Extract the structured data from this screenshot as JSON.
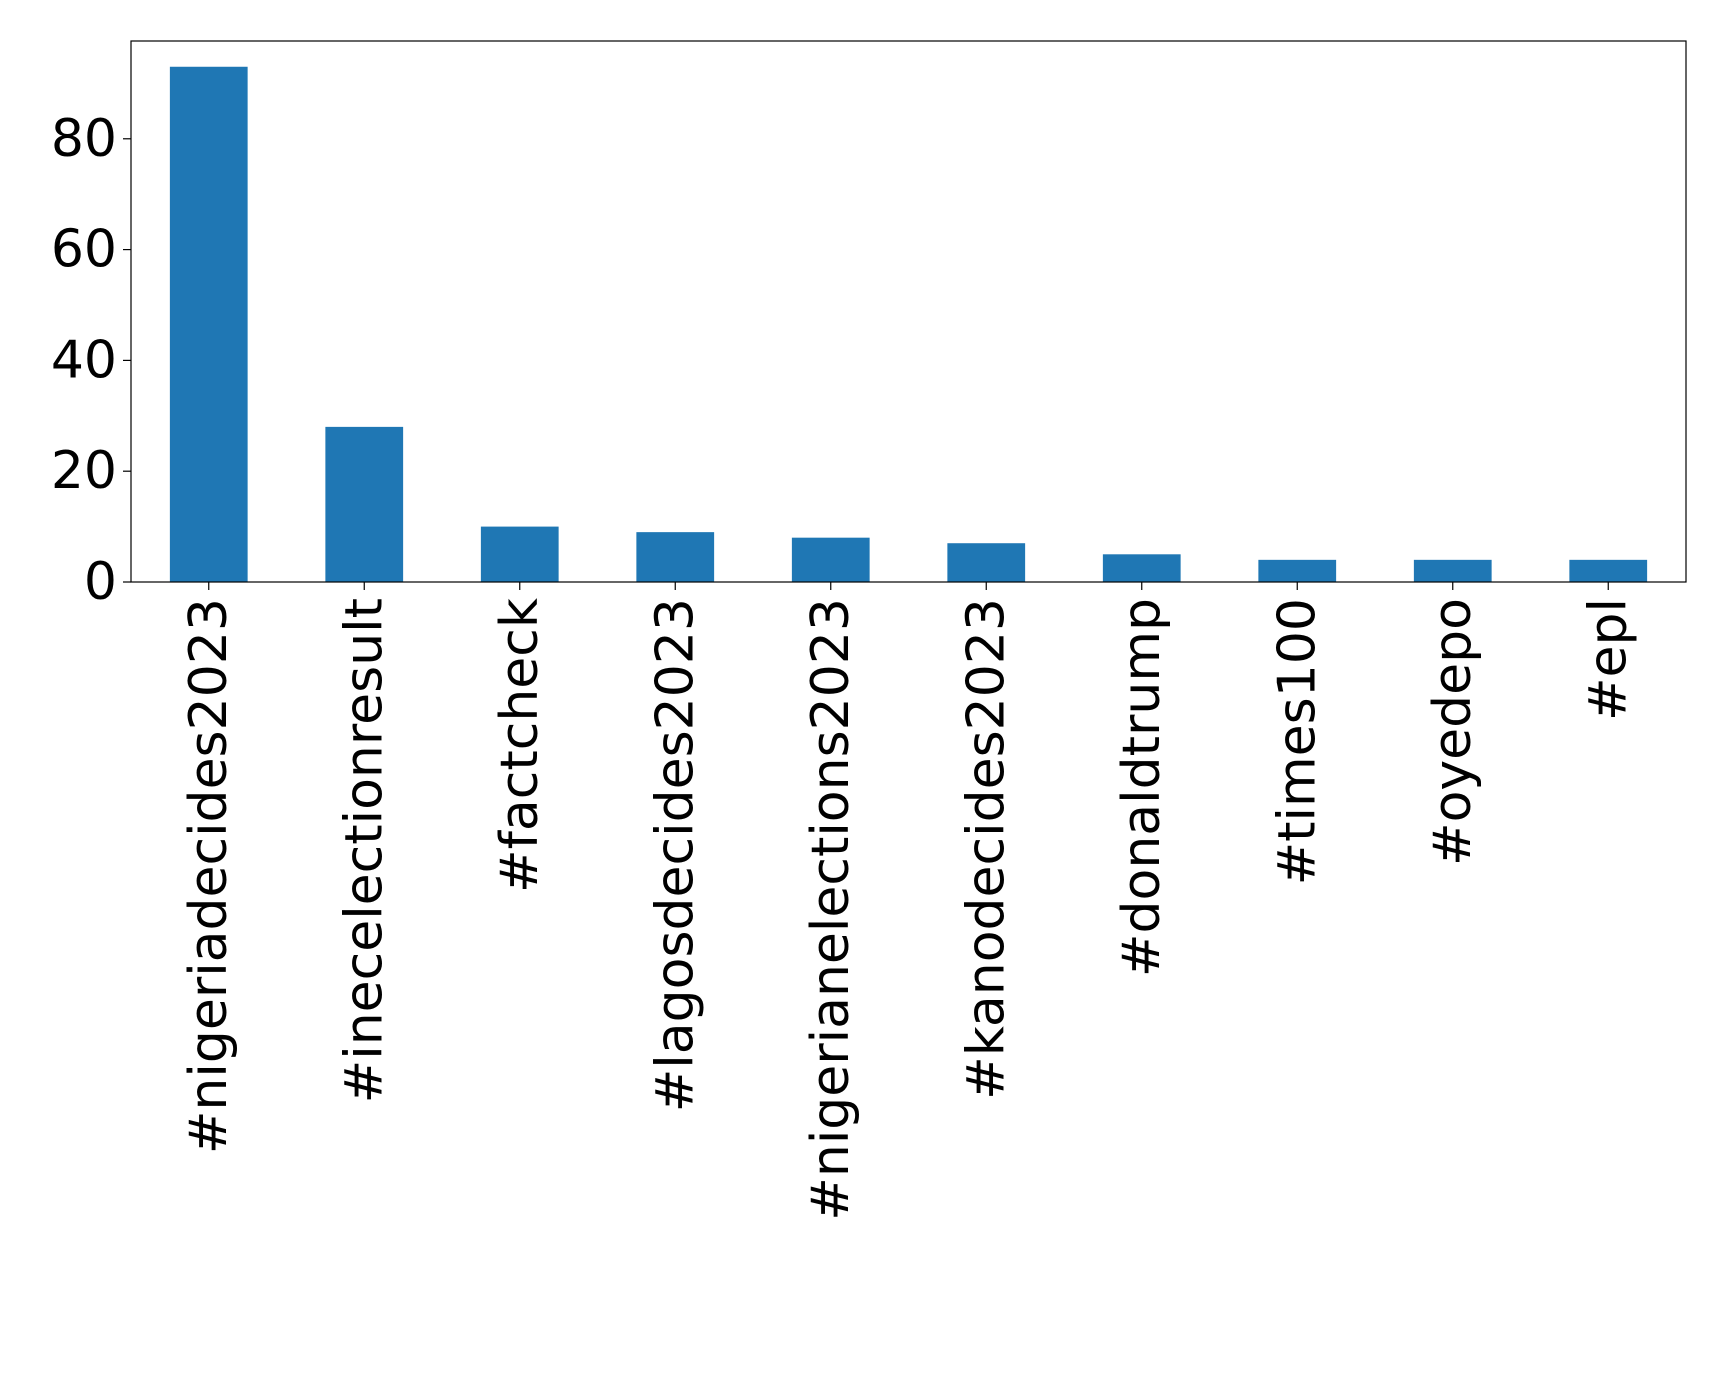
{
  "chart_data": {
    "type": "bar",
    "title": "",
    "xlabel": "",
    "ylabel": "",
    "categories": [
      "#nigeriadecides2023",
      "#inecelectionresult",
      "#factcheck",
      "#lagosdecides2023",
      "#nigerianelections2023",
      "#kanodecides2023",
      "#donaldtrump",
      "#times100",
      "#oyedepo",
      "#epl"
    ],
    "values": [
      93,
      28,
      10,
      9,
      8,
      7,
      5,
      4,
      4,
      4
    ],
    "ylim": [
      0,
      97.65
    ],
    "yticks": [
      0,
      20,
      40,
      60,
      80
    ],
    "grid": false,
    "legend": "none",
    "bar_color": "#1f77b4"
  }
}
